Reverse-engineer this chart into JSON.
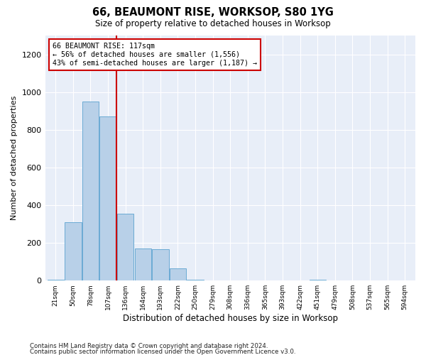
{
  "title": "66, BEAUMONT RISE, WORKSOP, S80 1YG",
  "subtitle": "Size of property relative to detached houses in Worksop",
  "xlabel": "Distribution of detached houses by size in Worksop",
  "ylabel": "Number of detached properties",
  "bar_color": "#b8d0e8",
  "bar_edge_color": "#6aaad4",
  "background_color": "#e8eef8",
  "annotation_text": "66 BEAUMONT RISE: 117sqm\n← 56% of detached houses are smaller (1,556)\n43% of semi-detached houses are larger (1,187) →",
  "annotation_box_color": "#ffffff",
  "annotation_box_edge_color": "#cc0000",
  "vline_x_index": 3,
  "vline_color": "#cc0000",
  "ylim": [
    0,
    1300
  ],
  "yticks": [
    0,
    200,
    400,
    600,
    800,
    1000,
    1200
  ],
  "categories": [
    "21sqm",
    "50sqm",
    "78sqm",
    "107sqm",
    "136sqm",
    "164sqm",
    "193sqm",
    "222sqm",
    "250sqm",
    "279sqm",
    "308sqm",
    "336sqm",
    "365sqm",
    "393sqm",
    "422sqm",
    "451sqm",
    "479sqm",
    "508sqm",
    "537sqm",
    "565sqm",
    "594sqm"
  ],
  "values": [
    5,
    310,
    950,
    870,
    355,
    170,
    165,
    65,
    5,
    0,
    0,
    0,
    0,
    0,
    0,
    5,
    0,
    0,
    0,
    0,
    0
  ],
  "footer_line1": "Contains HM Land Registry data © Crown copyright and database right 2024.",
  "footer_line2": "Contains public sector information licensed under the Open Government Licence v3.0.",
  "n_bars": 21,
  "vline_after_bar": 3
}
